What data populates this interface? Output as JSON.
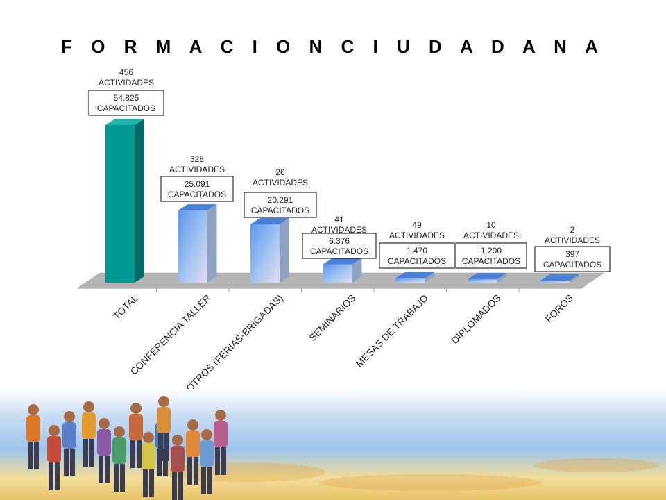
{
  "chart_data": {
    "type": "bar",
    "title": "F O R M A C I O N   C I U D A D A N A",
    "xlabel": "",
    "ylabel": "",
    "ylim": [
      0,
      60000
    ],
    "grid": false,
    "legend": "none",
    "categories": [
      "TOTAL",
      "CONFERENCIA TALLER",
      "OTROS (FERIAS-BRIGADAS)",
      "SEMINARIOS",
      "MESAS DE TRABAJO",
      "DIPLOMADOS",
      "FOROS"
    ],
    "series": [
      {
        "values": [
          54825,
          25091,
          20291,
          6376,
          1470,
          1200,
          397
        ]
      }
    ],
    "activities": [
      456,
      328,
      26,
      41,
      49,
      10,
      2
    ],
    "label_line1": [
      "456",
      "328",
      "26",
      "41",
      "49",
      "10",
      "2"
    ],
    "label_line2": "ACTIVIDADES",
    "box_line1": [
      "54.825",
      "25.091",
      "20.291",
      "6.376",
      "1.470",
      "1.200",
      "397"
    ],
    "box_line2": "CAPACITADOS",
    "colors": {
      "total": "#009a94",
      "others": "#6fa8f0",
      "floor": "#b5b5b5"
    }
  }
}
